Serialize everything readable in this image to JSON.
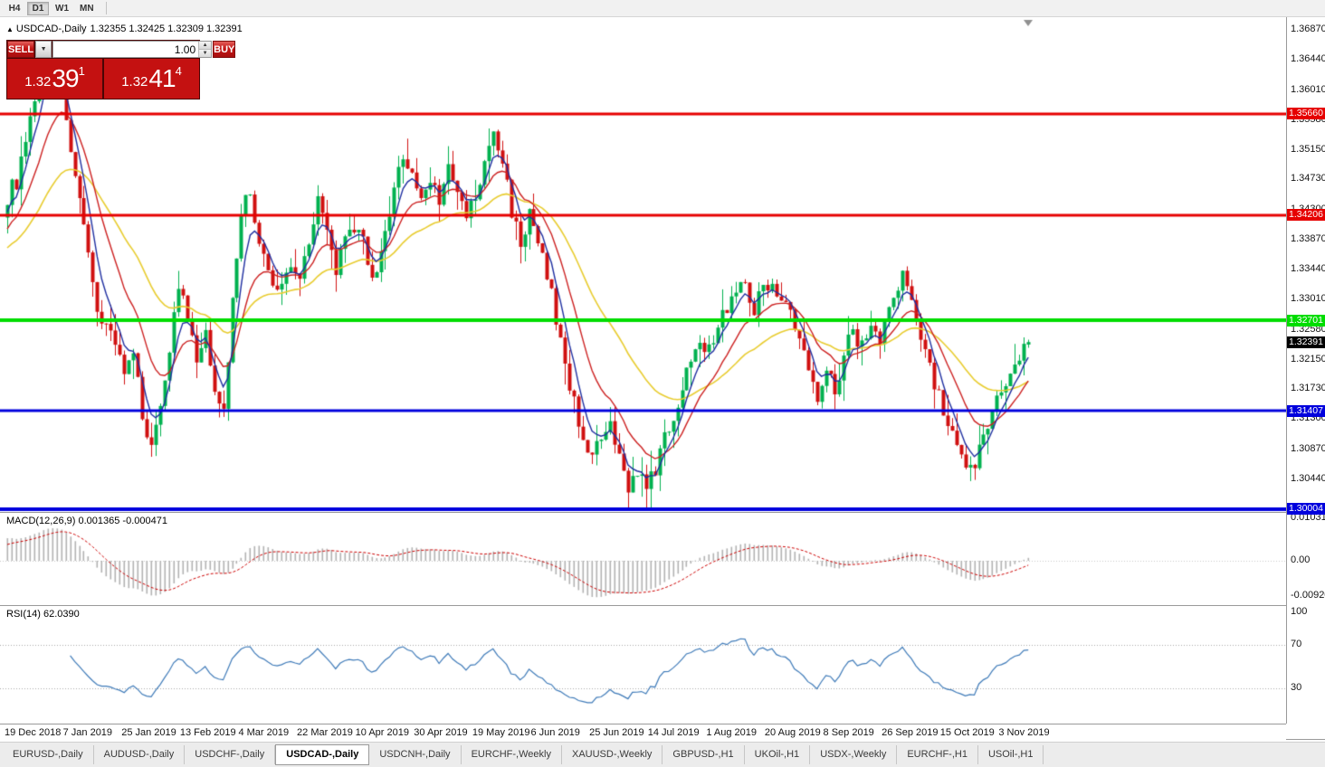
{
  "toolbar": {
    "timeframes": [
      {
        "label": "H4",
        "active": false
      },
      {
        "label": "D1",
        "active": true
      },
      {
        "label": "W1",
        "active": false
      },
      {
        "label": "MN",
        "active": false
      }
    ]
  },
  "icons": {
    "expand": "▲",
    "dropdown": "▼",
    "spin_up": "▲",
    "spin_down": "▼"
  },
  "chart_header": {
    "symbol": "USDCAD-,Daily",
    "ohlc": "1.32355 1.32425 1.32309 1.32391"
  },
  "trade_panel": {
    "sell_label": "SELL",
    "buy_label": "BUY",
    "volume": "1.00",
    "bid": {
      "prefix": "1.32",
      "big": "39",
      "sup": "1"
    },
    "ask": {
      "prefix": "1.32",
      "big": "41",
      "sup": "4"
    }
  },
  "indicator_labels": {
    "macd": "MACD(12,26,9) 0.001365 -0.000471",
    "rsi": "RSI(14) 62.0390"
  },
  "tabs": [
    {
      "label": "EURUSD-,Daily",
      "active": false
    },
    {
      "label": "AUDUSD-,Daily",
      "active": false
    },
    {
      "label": "USDCHF-,Daily",
      "active": false
    },
    {
      "label": "USDCAD-,Daily",
      "active": true
    },
    {
      "label": "USDCNH-,Daily",
      "active": false
    },
    {
      "label": "EURCHF-,Weekly",
      "active": false
    },
    {
      "label": "XAUUSD-,Weekly",
      "active": false
    },
    {
      "label": "GBPUSD-,H1",
      "active": false
    },
    {
      "label": "UKOil-,H1",
      "active": false
    },
    {
      "label": "USDX-,Weekly",
      "active": false
    },
    {
      "label": "EURCHF-,H1",
      "active": false
    },
    {
      "label": "USOil-,H1",
      "active": false
    }
  ],
  "chart_data": {
    "type": "candlestick",
    "symbol": "USDCAD",
    "timeframe": "Daily",
    "y_axis": {
      "max": 1.3704,
      "min": 1.2996,
      "labels": [
        "1.36870",
        "1.36440",
        "1.36010",
        "1.35580",
        "1.35150",
        "1.34730",
        "1.34300",
        "1.33870",
        "1.33440",
        "1.33010",
        "1.32580",
        "1.32150",
        "1.31730",
        "1.31300",
        "1.30870",
        "1.30440"
      ]
    },
    "x_labels": [
      "19 Dec 2018",
      "7 Jan 2019",
      "25 Jan 2019",
      "13 Feb 2019",
      "4 Mar 2019",
      "22 Mar 2019",
      "10 Apr 2019",
      "30 Apr 2019",
      "19 May 2019",
      "6 Jun 2019",
      "25 Jun 2019",
      "14 Jul 2019",
      "1 Aug 2019",
      "20 Aug 2019",
      "8 Sep 2019",
      "26 Sep 2019",
      "15 Oct 2019",
      "3 Nov 2019"
    ],
    "label_interval": 13,
    "candle_count": 228,
    "noise": 0.0026,
    "wick": 0.003,
    "up_color": "#00b14f",
    "down_color": "#d01010",
    "last_candle": {
      "o": 1.32355,
      "h": 1.32425,
      "l": 1.32309,
      "c": 1.32391
    },
    "close_keypoints": [
      [
        0,
        1.3448
      ],
      [
        2,
        1.347
      ],
      [
        4,
        1.352
      ],
      [
        6,
        1.358
      ],
      [
        8,
        1.364
      ],
      [
        9,
        1.365
      ],
      [
        11,
        1.3635
      ],
      [
        13,
        1.3565
      ],
      [
        15,
        1.347
      ],
      [
        17,
        1.3395
      ],
      [
        19,
        1.332
      ],
      [
        21,
        1.327
      ],
      [
        24,
        1.3245
      ],
      [
        26,
        1.3195
      ],
      [
        28,
        1.3215
      ],
      [
        30,
        1.314
      ],
      [
        32,
        1.3085
      ],
      [
        34,
        1.3155
      ],
      [
        36,
        1.323
      ],
      [
        38,
        1.332
      ],
      [
        40,
        1.327
      ],
      [
        42,
        1.321
      ],
      [
        44,
        1.3245
      ],
      [
        46,
        1.318
      ],
      [
        48,
        1.3135
      ],
      [
        50,
        1.33
      ],
      [
        52,
        1.343
      ],
      [
        54,
        1.345
      ],
      [
        56,
        1.338
      ],
      [
        58,
        1.3335
      ],
      [
        60,
        1.331
      ],
      [
        63,
        1.3355
      ],
      [
        65,
        1.333
      ],
      [
        67,
        1.339
      ],
      [
        69,
        1.3445
      ],
      [
        71,
        1.339
      ],
      [
        73,
        1.3345
      ],
      [
        75,
        1.338
      ],
      [
        78,
        1.3405
      ],
      [
        80,
        1.3355
      ],
      [
        82,
        1.333
      ],
      [
        84,
        1.339
      ],
      [
        86,
        1.345
      ],
      [
        88,
        1.351
      ],
      [
        90,
        1.348
      ],
      [
        92,
        1.344
      ],
      [
        94,
        1.3475
      ],
      [
        96,
        1.3445
      ],
      [
        98,
        1.3485
      ],
      [
        100,
        1.345
      ],
      [
        102,
        1.342
      ],
      [
        104,
        1.3445
      ],
      [
        106,
        1.349
      ],
      [
        108,
        1.354
      ],
      [
        110,
        1.3495
      ],
      [
        112,
        1.343
      ],
      [
        114,
        1.338
      ],
      [
        116,
        1.342
      ],
      [
        118,
        1.3375
      ],
      [
        120,
        1.334
      ],
      [
        122,
        1.327
      ],
      [
        124,
        1.321
      ],
      [
        126,
        1.315
      ],
      [
        128,
        1.3105
      ],
      [
        130,
        1.3075
      ],
      [
        132,
        1.3095
      ],
      [
        134,
        1.3115
      ],
      [
        136,
        1.307
      ],
      [
        138,
        1.3035
      ],
      [
        140,
        1.3055
      ],
      [
        142,
        1.3025
      ],
      [
        144,
        1.306
      ],
      [
        146,
        1.31
      ],
      [
        148,
        1.3135
      ],
      [
        150,
        1.317
      ],
      [
        152,
        1.322
      ],
      [
        154,
        1.325
      ],
      [
        156,
        1.3225
      ],
      [
        158,
        1.3265
      ],
      [
        161,
        1.3305
      ],
      [
        164,
        1.3325
      ],
      [
        166,
        1.329
      ],
      [
        168,
        1.3315
      ],
      [
        170,
        1.333
      ],
      [
        172,
        1.33
      ],
      [
        174,
        1.328
      ],
      [
        176,
        1.324
      ],
      [
        178,
        1.32
      ],
      [
        180,
        1.3165
      ],
      [
        182,
        1.321
      ],
      [
        184,
        1.3165
      ],
      [
        186,
        1.3225
      ],
      [
        188,
        1.3255
      ],
      [
        190,
        1.3235
      ],
      [
        192,
        1.3265
      ],
      [
        194,
        1.3245
      ],
      [
        196,
        1.3285
      ],
      [
        199,
        1.333
      ],
      [
        201,
        1.3305
      ],
      [
        203,
        1.3255
      ],
      [
        205,
        1.3205
      ],
      [
        207,
        1.316
      ],
      [
        209,
        1.312
      ],
      [
        211,
        1.3085
      ],
      [
        213,
        1.305
      ],
      [
        215,
        1.3065
      ],
      [
        217,
        1.311
      ],
      [
        219,
        1.3145
      ],
      [
        221,
        1.3165
      ],
      [
        223,
        1.3195
      ],
      [
        225,
        1.3225
      ],
      [
        227,
        1.32391
      ]
    ],
    "moving_averages": [
      {
        "period": 34,
        "color": "#e8cc30",
        "width": 1.6,
        "seed_offset": -0.0065
      },
      {
        "period": 13,
        "color": "#cc2020",
        "width": 1.4,
        "seed_offset": -0.004
      },
      {
        "period": 5,
        "color": "#1f2fa0",
        "width": 1.4,
        "seed_offset": -0.0015
      }
    ],
    "price_lines": [
      {
        "price": 1.3566,
        "color": "#e60000",
        "width": 3,
        "badge": "1.35660"
      },
      {
        "price": 1.34206,
        "color": "#e60000",
        "width": 3,
        "badge": "1.34206"
      },
      {
        "price": 1.32701,
        "color": "#00dd00",
        "width": 4,
        "badge": "1.32701"
      },
      {
        "price": 1.31407,
        "color": "#0000dd",
        "width": 3,
        "badge": "1.31407"
      },
      {
        "price": 1.30004,
        "color": "#0000dd",
        "width": 4,
        "badge": "1.30004"
      }
    ],
    "current_price": {
      "value": "1.32391",
      "price": 1.32391,
      "color": "#000000"
    },
    "macd": {
      "fast": 12,
      "slow": 26,
      "signal": 9,
      "scale": [
        "0.010311",
        "0.00",
        "-0.009203"
      ],
      "hist_color": "#b2b2b2",
      "signal_color": "#cc0000"
    },
    "rsi": {
      "period": 14,
      "scale": [
        "100",
        "70",
        "30"
      ],
      "levels": [
        70,
        30
      ],
      "color": "#3e7ab8",
      "current": 62.039
    }
  }
}
